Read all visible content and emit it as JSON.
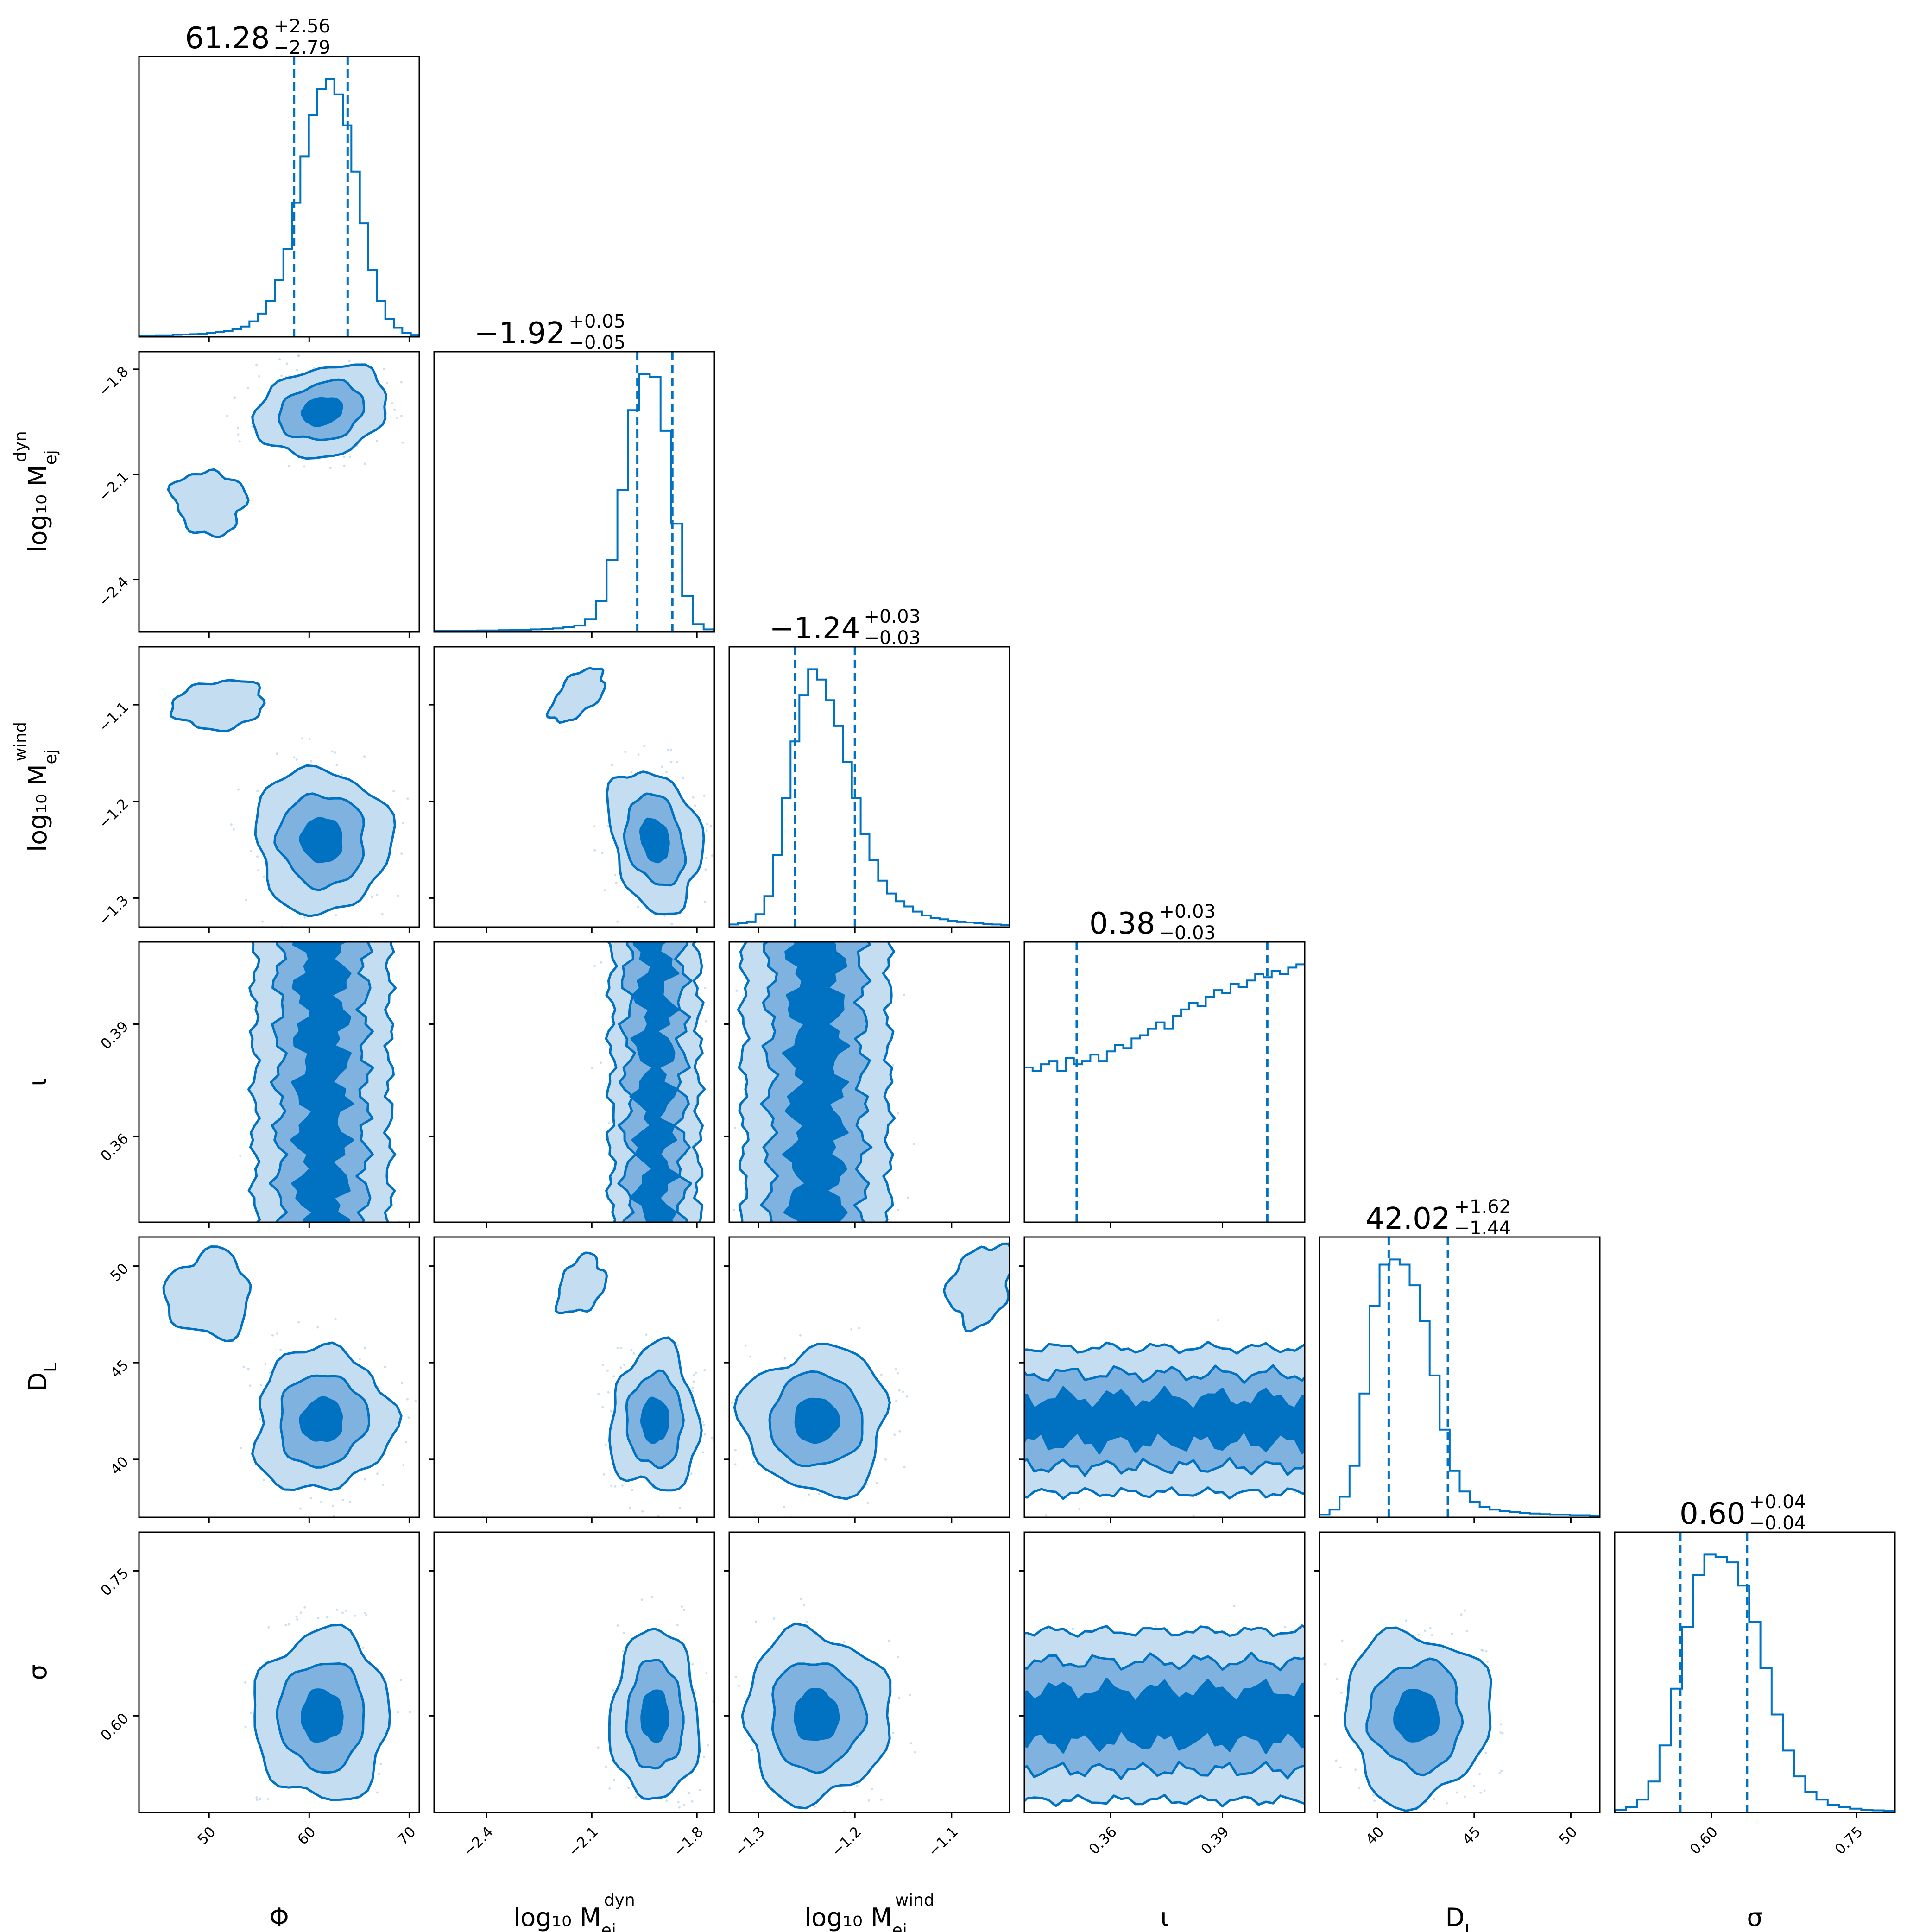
{
  "chart_data": {
    "type": "corner",
    "color": "#0072c1",
    "fill_colors": [
      "#c4ddf1",
      "#7fb2df",
      "#0072c1"
    ],
    "parameters": [
      {
        "name": "Phi",
        "label": "Φ",
        "range": [
          43,
          71
        ],
        "ticks": [
          50,
          60,
          70
        ],
        "tick_labels": [
          "50",
          "60",
          "70"
        ],
        "median": 61.28,
        "upper": "+2.56",
        "lower": "−2.79",
        "median_label": "61.28",
        "q16": 58.49,
        "q84": 63.84,
        "sigma": 2.7
      },
      {
        "name": "log10_Mej_dyn",
        "label": "log₁₀ M",
        "label_sub": "ej",
        "label_sup": "dyn",
        "range": [
          -2.55,
          -1.75
        ],
        "ticks": [
          -2.4,
          -2.1,
          -1.8
        ],
        "tick_labels": [
          "−2.4",
          "−2.1",
          "−1.8"
        ],
        "median": -1.92,
        "upper": "+0.05",
        "lower": "−0.05",
        "median_label": "−1.92",
        "q16": -1.97,
        "q84": -1.87,
        "sigma": 0.05
      },
      {
        "name": "log10_Mej_wind",
        "label": "log₁₀ M",
        "label_sub": "ej",
        "label_sup": "wind",
        "range": [
          -1.33,
          -1.04
        ],
        "ticks": [
          -1.3,
          -1.2,
          -1.1
        ],
        "tick_labels": [
          "−1.3",
          "−1.2",
          "−1.1"
        ],
        "median": -1.24,
        "upper": "+0.03",
        "lower": "−0.03",
        "median_label": "−1.24",
        "q16": -1.262,
        "q84": -1.2,
        "sigma": 0.03
      },
      {
        "name": "iota",
        "label": "ι",
        "range": [
          0.337,
          0.412
        ],
        "ticks": [
          0.36,
          0.39
        ],
        "tick_labels": [
          "0.36",
          "0.39"
        ],
        "median": 0.38,
        "upper": "+0.03",
        "lower": "−0.03",
        "median_label": "0.38",
        "q16": 0.351,
        "q84": 0.402,
        "sigma": 0.03
      },
      {
        "name": "D_L",
        "label": "D",
        "label_sub": "L",
        "range": [
          37,
          51.5
        ],
        "ticks": [
          40,
          45,
          50
        ],
        "tick_labels": [
          "40",
          "45",
          "50"
        ],
        "median": 42.02,
        "upper": "+1.62",
        "lower": "−1.44",
        "median_label": "42.02",
        "q16": 40.58,
        "q84": 43.64,
        "sigma": 1.5
      },
      {
        "name": "sigma",
        "label": "σ",
        "range": [
          0.5,
          0.79
        ],
        "ticks": [
          0.6,
          0.75
        ],
        "tick_labels": [
          "0.60",
          "0.75"
        ],
        "median": 0.6,
        "upper": "+0.04",
        "lower": "−0.04",
        "median_label": "0.60",
        "q16": 0.568,
        "q84": 0.637,
        "sigma": 0.035
      }
    ],
    "histograms": [
      [
        0.005,
        0.005,
        0.006,
        0.006,
        0.008,
        0.009,
        0.01,
        0.012,
        0.015,
        0.018,
        0.022,
        0.03,
        0.04,
        0.06,
        0.09,
        0.14,
        0.22,
        0.34,
        0.52,
        0.7,
        0.86,
        0.96,
        1.0,
        0.94,
        0.82,
        0.64,
        0.44,
        0.26,
        0.14,
        0.07,
        0.035,
        0.015,
        0.007
      ],
      [
        0.004,
        0.004,
        0.005,
        0.005,
        0.006,
        0.006,
        0.007,
        0.008,
        0.009,
        0.01,
        0.012,
        0.014,
        0.018,
        0.025,
        0.05,
        0.12,
        0.28,
        0.55,
        0.86,
        1.0,
        0.99,
        0.78,
        0.42,
        0.14,
        0.03,
        0.01
      ],
      [
        0.01,
        0.015,
        0.02,
        0.05,
        0.12,
        0.28,
        0.5,
        0.72,
        0.9,
        1.0,
        0.96,
        0.88,
        0.78,
        0.64,
        0.5,
        0.36,
        0.26,
        0.18,
        0.13,
        0.1,
        0.08,
        0.06,
        0.045,
        0.035,
        0.03,
        0.025,
        0.02,
        0.018,
        0.015,
        0.012,
        0.01,
        0.008
      ],
      [
        0.48,
        0.47,
        0.49,
        0.5,
        0.47,
        0.51,
        0.49,
        0.5,
        0.52,
        0.5,
        0.53,
        0.55,
        0.54,
        0.57,
        0.58,
        0.6,
        0.62,
        0.6,
        0.64,
        0.66,
        0.68,
        0.67,
        0.7,
        0.72,
        0.71,
        0.74,
        0.73,
        0.75,
        0.77,
        0.76,
        0.78,
        0.77,
        0.79,
        0.8
      ],
      [
        0.01,
        0.03,
        0.08,
        0.2,
        0.48,
        0.82,
        0.98,
        1.0,
        0.98,
        0.9,
        0.76,
        0.55,
        0.34,
        0.18,
        0.1,
        0.06,
        0.04,
        0.03,
        0.025,
        0.02,
        0.018,
        0.015,
        0.012,
        0.01,
        0.01,
        0.008,
        0.008,
        0.006
      ],
      [
        0.01,
        0.02,
        0.05,
        0.12,
        0.26,
        0.48,
        0.72,
        0.92,
        1.0,
        0.99,
        0.97,
        0.88,
        0.74,
        0.56,
        0.38,
        0.24,
        0.14,
        0.08,
        0.05,
        0.03,
        0.02,
        0.015,
        0.01,
        0.008,
        0.006
      ]
    ],
    "contour_levels": [
      "1sigma",
      "2sigma",
      "3sigma"
    ]
  }
}
